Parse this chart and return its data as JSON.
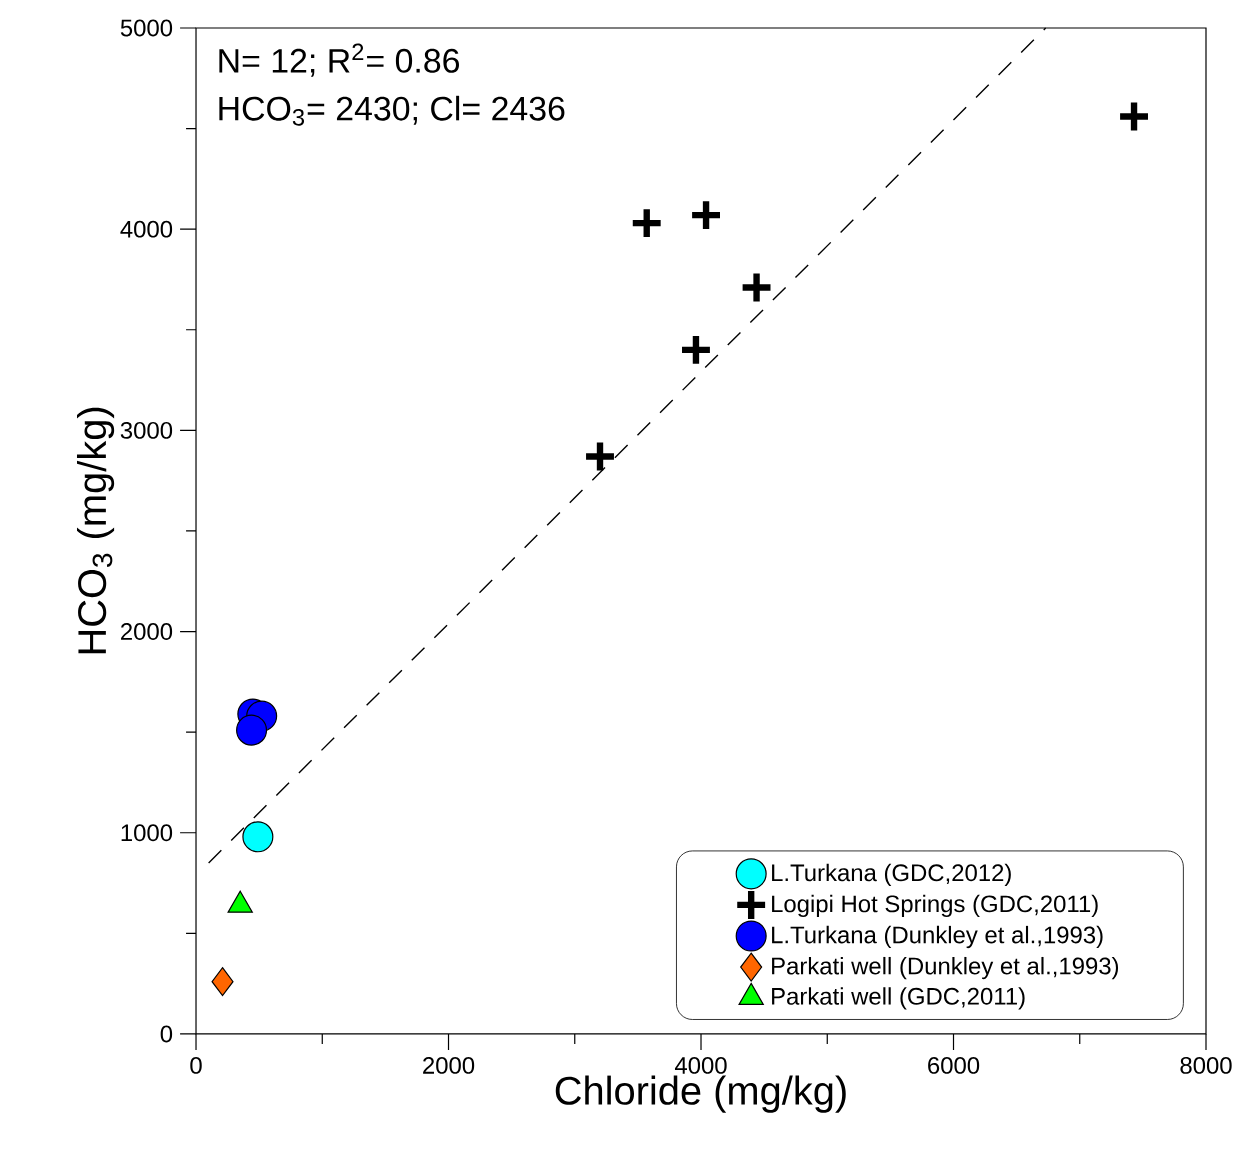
{
  "chart_data": {
    "type": "scatter",
    "xlabel": "Chloride (mg/kg)",
    "ylabel": "HCO$_{3}$ (mg/kg)",
    "annotations": [
      "N= 12; R$^{2}$= 0.86",
      "HCO$_{3}$= 2430; Cl= 2436"
    ],
    "xlim": [
      0,
      8000
    ],
    "ylim": [
      0,
      5000
    ],
    "xticks": [
      0,
      2000,
      4000,
      6000,
      8000
    ],
    "yticks": [
      0,
      1000,
      2000,
      3000,
      4000,
      5000
    ],
    "legend": "bottom right",
    "series": [
      {
        "name": "L.Turkana (GDC,2012)",
        "color": "#00ffff",
        "marker": "circle",
        "x": [
          490
        ],
        "values": [
          980
        ]
      },
      {
        "name": "Logipi Hot Springs (GDC,2011)",
        "color": "#000000",
        "marker": "cross",
        "x": [
          3200,
          3960,
          4440,
          3570,
          4040,
          7430
        ],
        "values": [
          2870,
          3400,
          3710,
          4030,
          4070,
          4560
        ]
      },
      {
        "name": "L.Turkana (Dunkley et al.,1993)",
        "color": "#0000ff",
        "marker": "circle",
        "x": [
          450,
          520,
          440
        ],
        "values": [
          1590,
          1580,
          1510
        ]
      },
      {
        "name": "Parkati well (Dunkley et al.,1993)",
        "color": "#ff6600",
        "marker": "diamond",
        "x": [
          210
        ],
        "values": [
          260
        ]
      },
      {
        "name": "Parkati well (GDC,2011)",
        "color": "#00ff00",
        "marker": "triangle",
        "x": [
          350
        ],
        "values": [
          640
        ]
      },
      {
        "type": "line",
        "color": "#000000",
        "line_style": "dashed",
        "marker": "none",
        "x": [
          100,
          6730
        ],
        "values": [
          850,
          5000
        ]
      }
    ]
  }
}
